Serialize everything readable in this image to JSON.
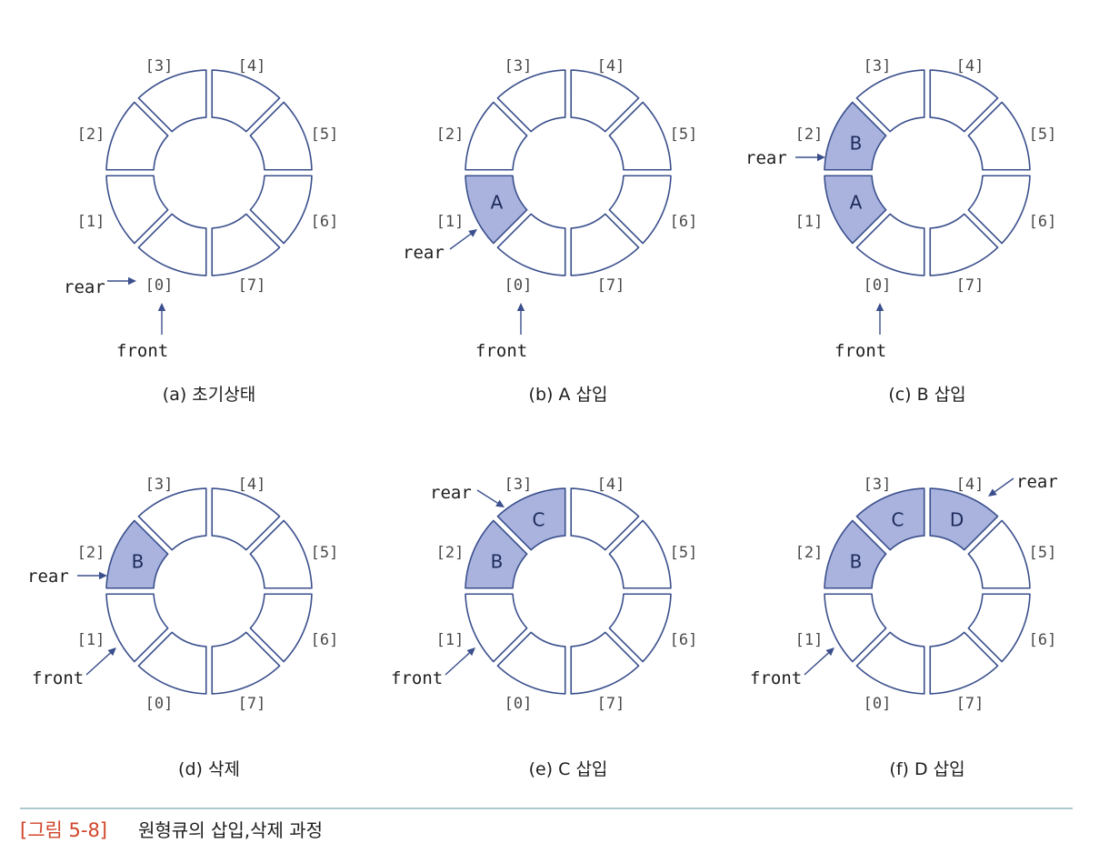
{
  "figure": {
    "number_label": "[그림 5-8]",
    "title": "원형큐의 삽입,삭제 과정"
  },
  "colors": {
    "outline": "#3a4f8c",
    "filled": "#a9b3de",
    "figure_number": "#d0452a",
    "rule": "#7aaab0"
  },
  "slot_labels": [
    "[0]",
    "[1]",
    "[2]",
    "[3]",
    "[4]",
    "[5]",
    "[6]",
    "[7]"
  ],
  "panels": [
    {
      "caption": "(a) 초기상태",
      "cells": {},
      "pointers": {
        "rear": {
          "text": "rear",
          "slot": 0
        },
        "front": {
          "text": "front",
          "slot": 0
        }
      }
    },
    {
      "caption": "(b) A 삽입",
      "cells": {
        "1": "A"
      },
      "pointers": {
        "rear": {
          "text": "rear",
          "slot": 1
        },
        "front": {
          "text": "front",
          "slot": 0
        }
      }
    },
    {
      "caption": "(c) B 삽입",
      "cells": {
        "1": "A",
        "2": "B"
      },
      "pointers": {
        "rear": {
          "text": "rear",
          "slot": 2
        },
        "front": {
          "text": "front",
          "slot": 0
        }
      }
    },
    {
      "caption": "(d) 삭제",
      "cells": {
        "2": "B"
      },
      "pointers": {
        "rear": {
          "text": "rear",
          "slot": 2
        },
        "front": {
          "text": "front",
          "slot": 1
        }
      }
    },
    {
      "caption": "(e) C 삽입",
      "cells": {
        "2": "B",
        "3": "C"
      },
      "pointers": {
        "rear": {
          "text": "rear",
          "slot": 3
        },
        "front": {
          "text": "front",
          "slot": 1
        }
      }
    },
    {
      "caption": "(f) D 삽입",
      "cells": {
        "2": "B",
        "3": "C",
        "4": "D"
      },
      "pointers": {
        "rear": {
          "text": "rear",
          "slot": 4
        },
        "front": {
          "text": "front",
          "slot": 1
        }
      }
    }
  ]
}
